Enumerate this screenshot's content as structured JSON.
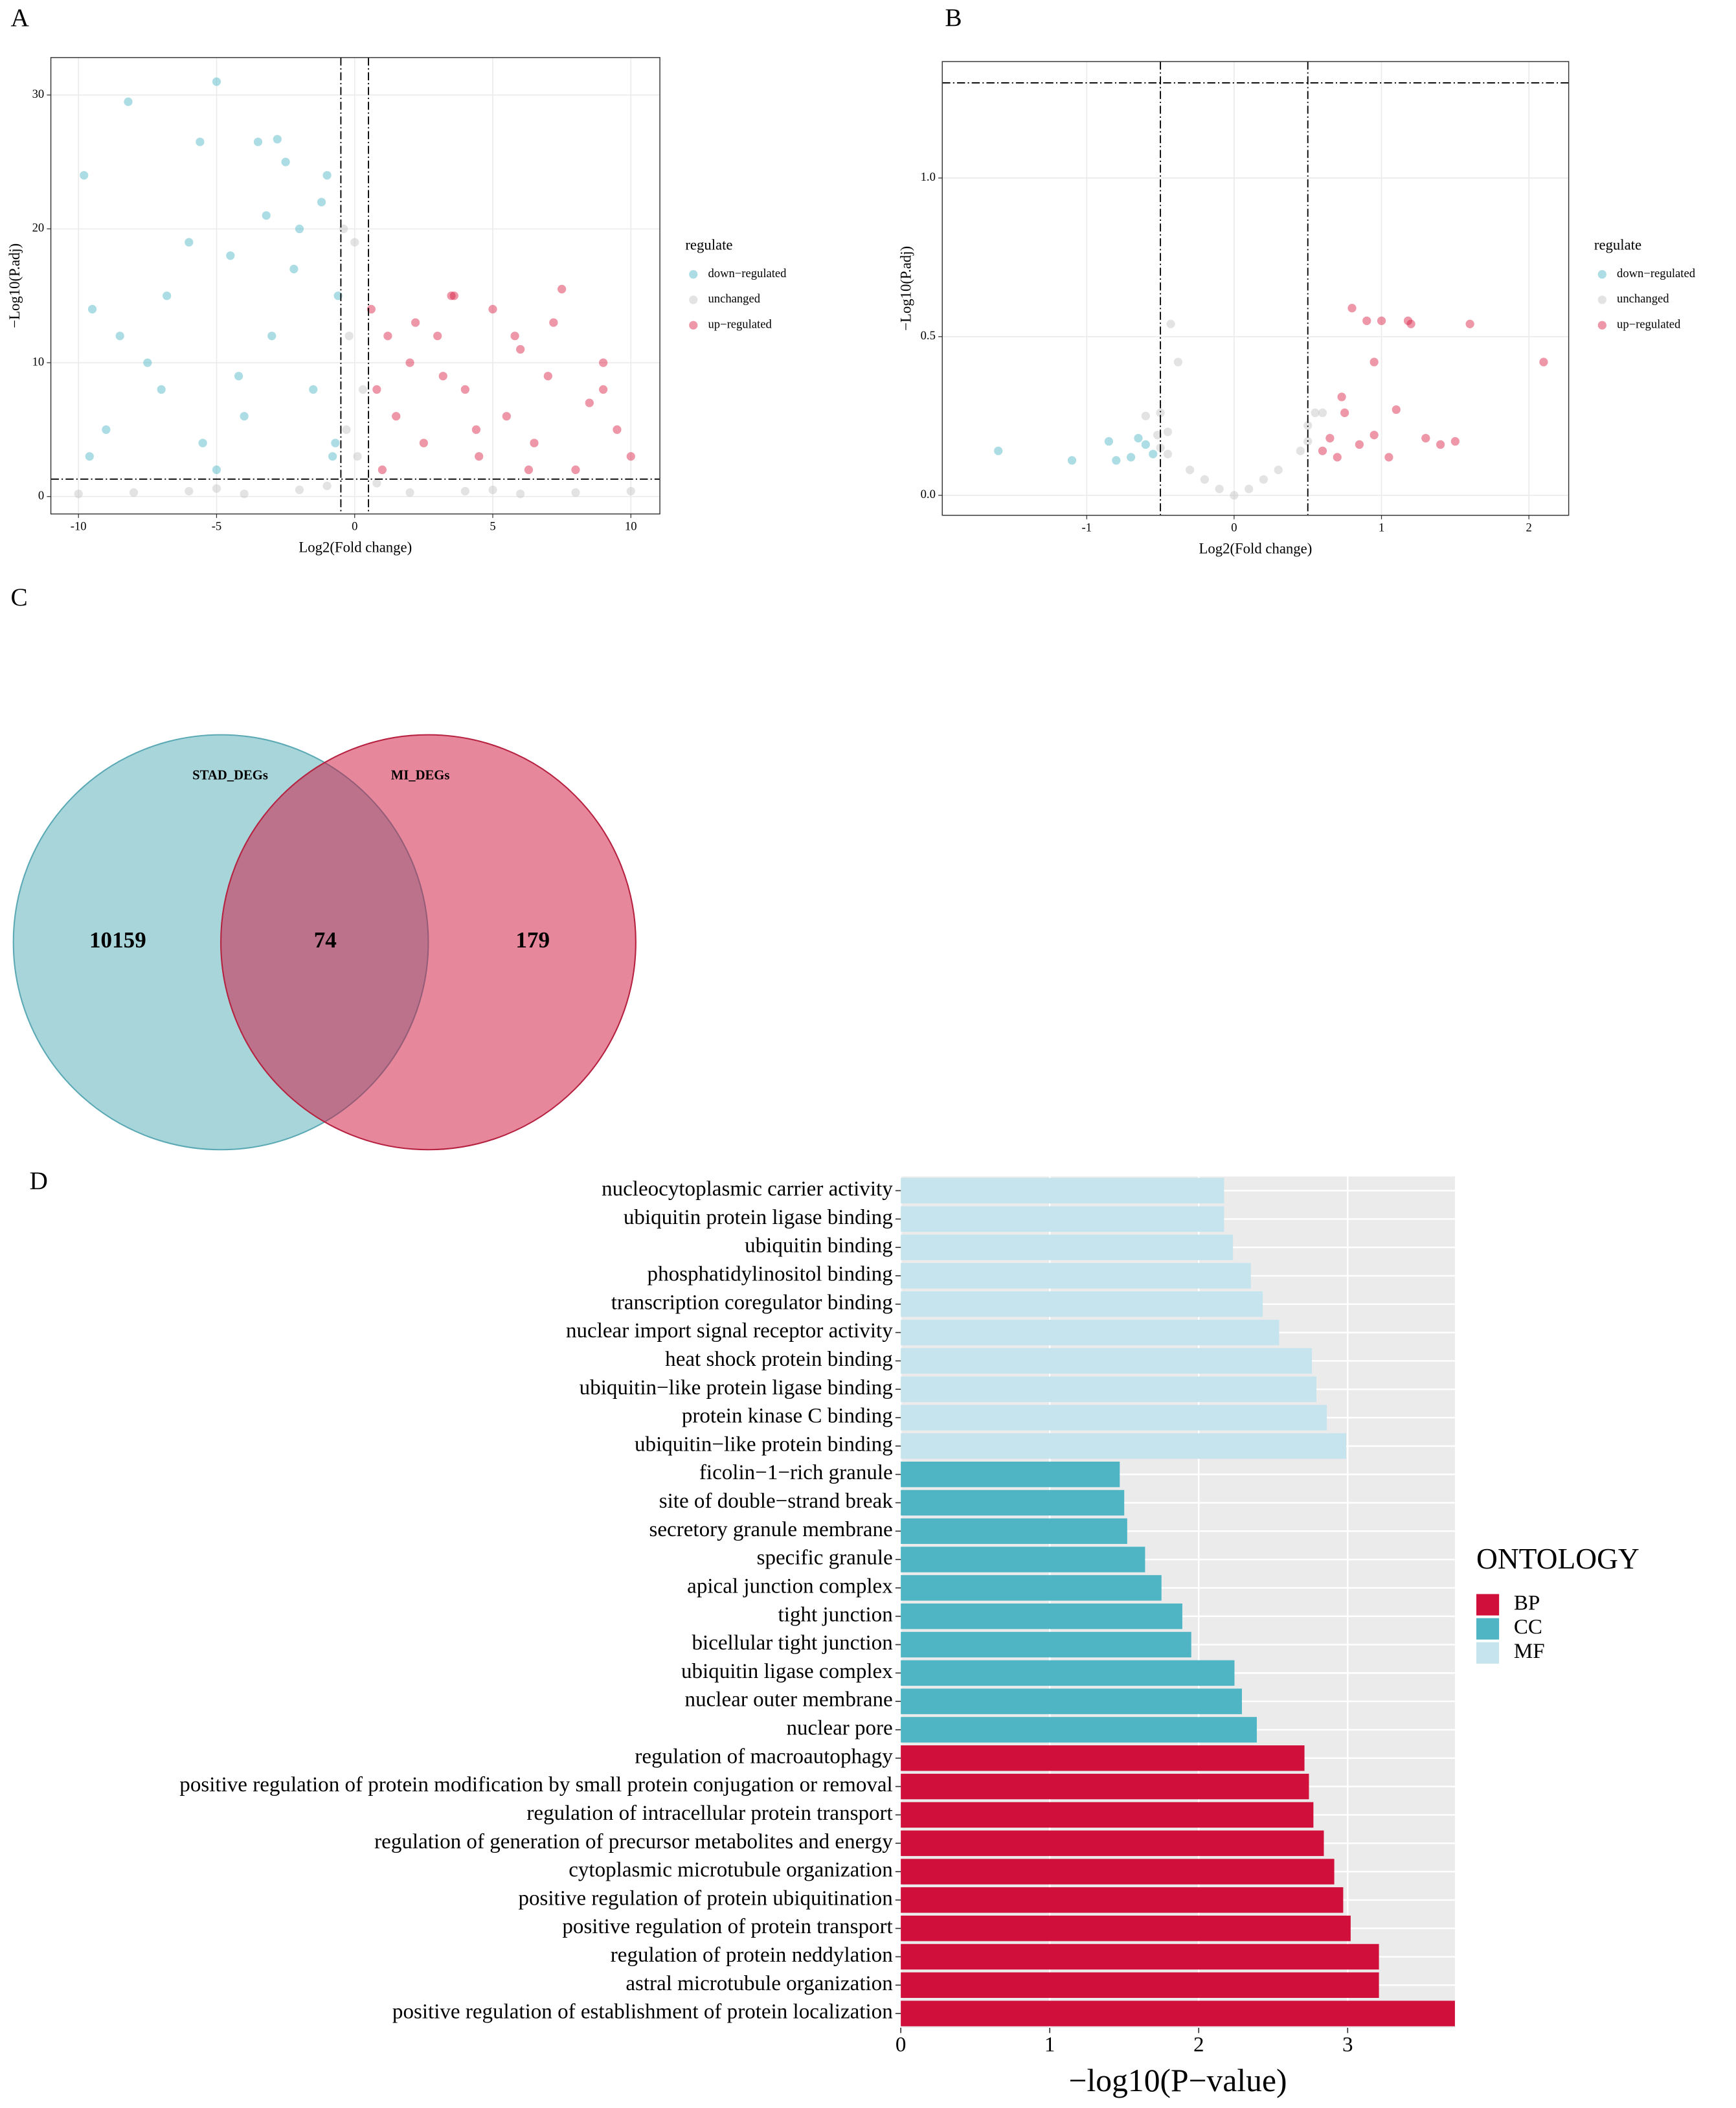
{
  "chart_data": [
    {
      "type": "scatter",
      "panel_label": "A",
      "x_label": "Log2(Fold change)",
      "y_label": "−Log10(P.adj)",
      "xlim": [
        -11.0,
        11.05
      ],
      "ylim": [
        -1.3,
        32.8
      ],
      "xticks": [
        -10,
        -5,
        0,
        5,
        10
      ],
      "yticks": [
        0,
        10,
        20,
        30
      ],
      "grid": true,
      "vlines": [
        -0.5,
        0.5
      ],
      "hlines": [
        1.3
      ],
      "legend_title": "regulate",
      "series": [
        {
          "name": "down−regulated",
          "color": "#4ab4c4",
          "x": [
            -9.8,
            -9.5,
            -9.0,
            -8.2,
            -7.5,
            -6.8,
            -6.0,
            -5.6,
            -5.0,
            -4.5,
            -4.0,
            -3.5,
            -3.0,
            -2.5,
            -2.0,
            -1.5,
            -1.0,
            -0.8,
            -0.6,
            -9.6,
            -8.5,
            -7.0,
            -5.5,
            -4.2,
            -3.2,
            -2.2,
            -1.2,
            -0.7,
            -5.0,
            -2.8
          ],
          "y": [
            24,
            14,
            5,
            29.5,
            10,
            15,
            19,
            26.5,
            31,
            18,
            6,
            26.5,
            12,
            25,
            20,
            8,
            24,
            3,
            15,
            3,
            12,
            8,
            4,
            9,
            21,
            17,
            22,
            4,
            2,
            26.7
          ]
        },
        {
          "name": "unchanged",
          "color": "#c0c0c0",
          "x": [
            -10,
            -8,
            -6,
            -4,
            -2,
            -1,
            -0.3,
            0,
            0.3,
            0.8,
            2,
            4,
            6,
            8,
            10,
            -0.2,
            0.1,
            -0.4,
            -5,
            5
          ],
          "y": [
            0.2,
            0.3,
            0.4,
            0.2,
            0.5,
            0.8,
            5,
            19,
            8,
            1,
            0.3,
            0.4,
            0.2,
            0.3,
            0.4,
            12,
            3,
            20,
            0.6,
            0.5
          ]
        },
        {
          "name": "up−regulated",
          "color": "#d7193f",
          "x": [
            0.6,
            1,
            1.5,
            2,
            2.5,
            3,
            3.5,
            4,
            4.5,
            5,
            5.5,
            6,
            6.5,
            7,
            7.5,
            8,
            8.5,
            9,
            9.5,
            10,
            0.8,
            1.2,
            3.2,
            4.4,
            5.8,
            7.2,
            2.2,
            6.3,
            9.0,
            3.6
          ],
          "y": [
            14,
            2,
            6,
            10,
            4,
            12,
            15,
            8,
            3,
            14,
            6,
            11,
            4,
            9,
            15.5,
            2,
            7,
            10,
            5,
            3,
            8,
            12,
            9,
            5,
            12,
            13,
            13,
            2,
            8,
            15
          ]
        }
      ]
    },
    {
      "type": "scatter",
      "panel_label": "B",
      "x_label": "Log2(Fold change)",
      "y_label": "−Log10(P.adj)",
      "xlim": [
        -1.98,
        2.27
      ],
      "ylim": [
        -0.063,
        1.367
      ],
      "xticks": [
        -1,
        0,
        1,
        2
      ],
      "yticks": [
        {
          "value": 0,
          "label": "0.0"
        },
        {
          "value": 0.5,
          "label": "0.5"
        },
        {
          "value": 1,
          "label": "1.0"
        }
      ],
      "grid": true,
      "vlines": [
        -0.5,
        0.5
      ],
      "hlines": [
        1.3
      ],
      "legend_title": "regulate",
      "series": [
        {
          "name": "down−regulated",
          "color": "#4ab4c4",
          "x": [
            -1.6,
            -1.1,
            -0.85,
            -0.7,
            -0.6,
            -0.55,
            -0.65,
            -0.8
          ],
          "y": [
            0.14,
            0.11,
            0.17,
            0.12,
            0.16,
            0.13,
            0.18,
            0.11
          ]
        },
        {
          "name": "unchanged",
          "color": "#c0c0c0",
          "x": [
            -0.5,
            -0.45,
            -0.3,
            -0.2,
            -0.1,
            0,
            0.1,
            0.2,
            0.3,
            0.45,
            0.5,
            -0.43,
            -0.38,
            -0.5,
            -0.45,
            -0.6,
            0.55,
            0.6,
            0.5,
            -0.52
          ],
          "y": [
            0.15,
            0.13,
            0.08,
            0.05,
            0.02,
            0.0,
            0.02,
            0.05,
            0.08,
            0.14,
            0.17,
            0.54,
            0.42,
            0.26,
            0.2,
            0.25,
            0.26,
            0.26,
            0.22,
            0.19
          ]
        },
        {
          "name": "up−regulated",
          "color": "#d7193f",
          "x": [
            0.6,
            0.65,
            0.7,
            0.75,
            0.8,
            0.85,
            0.9,
            0.95,
            1.0,
            1.05,
            1.1,
            1.2,
            1.3,
            1.4,
            1.5,
            1.6,
            2.1,
            0.95,
            0.73,
            1.18
          ],
          "y": [
            0.14,
            0.18,
            0.12,
            0.26,
            0.59,
            0.16,
            0.55,
            0.42,
            0.55,
            0.12,
            0.27,
            0.54,
            0.18,
            0.16,
            0.17,
            0.54,
            0.42,
            0.19,
            0.31,
            0.55
          ]
        }
      ]
    },
    {
      "type": "venn",
      "panel_label": "C",
      "sets": [
        {
          "name": "STAD_DEGs",
          "color": "#a7d5da",
          "stroke": "#5aa9b5",
          "only": 10159
        },
        {
          "name": "MI_DEGs",
          "color": "#d0103a",
          "stroke": "#b5213f",
          "only": 179
        }
      ],
      "intersection": 74
    },
    {
      "type": "bar",
      "orientation": "horizontal",
      "panel_label": "D",
      "x_label": "−log10(P−value)",
      "xlim": [
        0,
        3.72
      ],
      "xticks": [
        0,
        1,
        2,
        3
      ],
      "grid": true,
      "legend_title": "ONTOLOGY",
      "series": [
        {
          "name": "BP",
          "color": "#d0103a",
          "categories": [
            "regulation of macroautophagy",
            "positive regulation of protein modification by small protein conjugation or removal",
            "regulation of intracellular protein transport",
            "regulation of generation of precursor metabolites and energy",
            "cytoplasmic microtubule organization",
            "positive regulation of protein ubiquitination",
            "positive regulation of protein transport",
            "regulation of protein neddylation",
            "astral microtubule organization",
            "positive regulation of establishment of protein localization"
          ],
          "values": [
            2.71,
            2.74,
            2.77,
            2.84,
            2.91,
            2.97,
            3.02,
            3.21,
            3.21,
            3.72
          ]
        },
        {
          "name": "CC",
          "color": "#4fb5c5",
          "categories": [
            "ficolin−1−rich granule",
            "site of double−strand break",
            "secretory granule membrane",
            "specific granule",
            "apical junction complex",
            "tight junction",
            "bicellular tight junction",
            "ubiquitin ligase complex",
            "nuclear outer membrane",
            "nuclear pore"
          ],
          "values": [
            1.47,
            1.5,
            1.52,
            1.64,
            1.75,
            1.89,
            1.95,
            2.24,
            2.29,
            2.39
          ]
        },
        {
          "name": "MF",
          "color": "#c6e4ee",
          "categories": [
            "nucleocytoplasmic carrier activity",
            "ubiquitin protein ligase binding",
            "ubiquitin binding",
            "phosphatidylinositol binding",
            "transcription coregulator binding",
            "nuclear import signal receptor activity",
            "heat shock protein binding",
            "ubiquitin−like protein ligase binding",
            "protein kinase C binding",
            "ubiquitin−like protein binding"
          ],
          "values": [
            2.17,
            2.17,
            2.23,
            2.35,
            2.43,
            2.54,
            2.76,
            2.79,
            2.86,
            2.99
          ]
        }
      ]
    }
  ]
}
